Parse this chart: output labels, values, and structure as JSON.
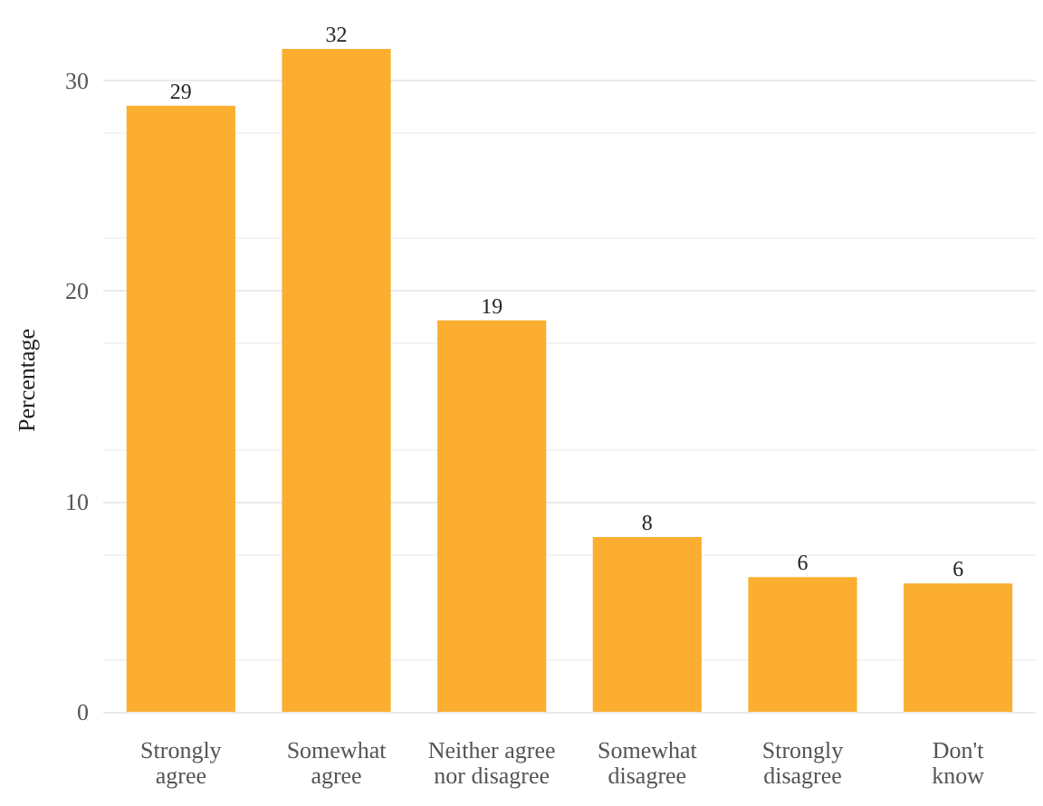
{
  "chart_data": {
    "type": "bar",
    "ylabel": "Percentage",
    "categories": [
      "Strongly\nagree",
      "Somewhat\nagree",
      "Neither agree\nnor disagree",
      "Somewhat\ndisagree",
      "Strongly\ndisagree",
      "Don't\nknow"
    ],
    "values": [
      28.8,
      31.5,
      18.6,
      8.3,
      6.4,
      6.1
    ],
    "value_labels": [
      "29",
      "32",
      "19",
      "8",
      "6",
      "6"
    ],
    "color": "#fbae30",
    "ylim": [
      0,
      31.5
    ],
    "yticks": [
      0,
      10,
      20,
      30
    ],
    "grid": "y"
  }
}
